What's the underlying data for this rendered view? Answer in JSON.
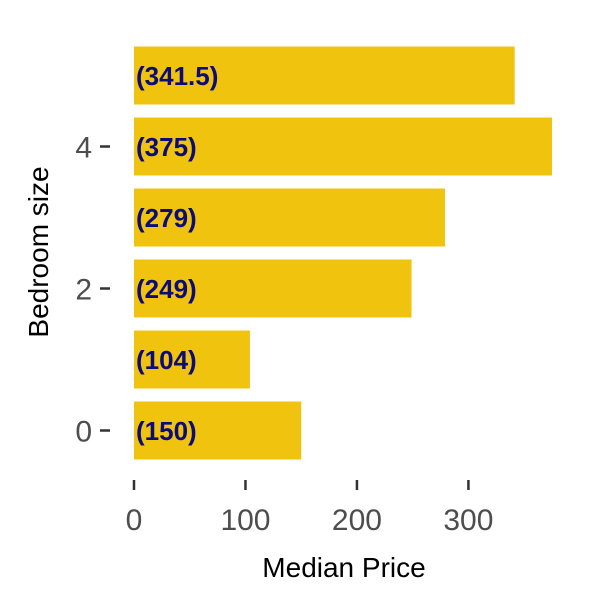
{
  "chart_data": {
    "type": "bar",
    "orientation": "horizontal",
    "xlabel": "Median Price",
    "ylabel": "Bedroom size",
    "categories": [
      "0",
      "1",
      "2",
      "3",
      "4",
      "5"
    ],
    "values": [
      150,
      104,
      249,
      279,
      375,
      341.5
    ],
    "data_labels": [
      "(150)",
      "(104)",
      "(249)",
      "(279)",
      "(375)",
      "(341.5)"
    ],
    "x_ticks": [
      "0",
      "100",
      "200",
      "300"
    ],
    "y_ticks": [
      "0",
      "2",
      "4"
    ],
    "xlim": [
      0,
      375
    ],
    "grid": false,
    "legend": "none",
    "colors": {
      "bar": "#F0C30E",
      "label": "#0B0B7A",
      "tick_text": "#4D4D4D",
      "tick_mark": "#333333"
    }
  }
}
